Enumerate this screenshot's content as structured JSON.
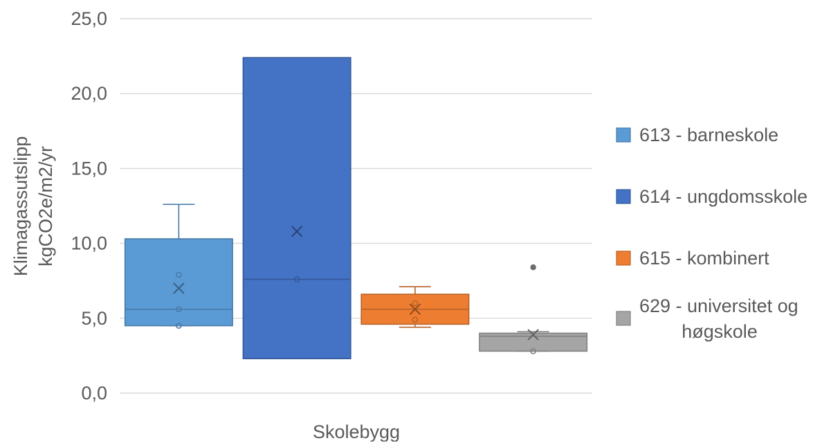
{
  "chart_data": {
    "type": "box",
    "title": "",
    "xlabel": "Skolebygg",
    "ylabel": [
      "Klimagassutslipp",
      "kgCO2e/m2/yr"
    ],
    "ylim": [
      0,
      25
    ],
    "yticks": [
      "0,0",
      "5,0",
      "10,0",
      "15,0",
      "20,0",
      "25,0"
    ],
    "ytick_values": [
      0,
      5,
      10,
      15,
      20,
      25
    ],
    "grid": true,
    "legend_position": "right",
    "series": [
      {
        "name": [
          "613 - barneskole"
        ],
        "color": "#5B9BD5",
        "q1": 4.5,
        "median": 5.6,
        "q3": 10.3,
        "whisker_low": 4.5,
        "whisker_high": 12.6,
        "mean": 7.0,
        "points": [
          7.9,
          5.6,
          4.5
        ]
      },
      {
        "name": [
          "614 - ungdomsskole"
        ],
        "color": "#4472C4",
        "q1": 2.3,
        "median": 7.6,
        "q3": 22.4,
        "whisker_low": 2.3,
        "whisker_high": 22.4,
        "mean": 10.8,
        "points": [
          7.6
        ]
      },
      {
        "name": [
          "615 - kombinert"
        ],
        "color": "#ED7D31",
        "q1": 4.6,
        "median": 5.6,
        "q3": 6.6,
        "whisker_low": 4.4,
        "whisker_high": 7.1,
        "mean": 5.6,
        "points": [
          6.0,
          4.9
        ]
      },
      {
        "name": [
          "629 - universitet og",
          "høgskole"
        ],
        "color": "#A5A5A5",
        "q1": 2.8,
        "median": 3.8,
        "q3": 4.0,
        "whisker_low": 2.8,
        "whisker_high": 4.1,
        "mean": 3.9,
        "outliers": [
          8.4
        ],
        "points": [
          2.8
        ]
      }
    ]
  }
}
